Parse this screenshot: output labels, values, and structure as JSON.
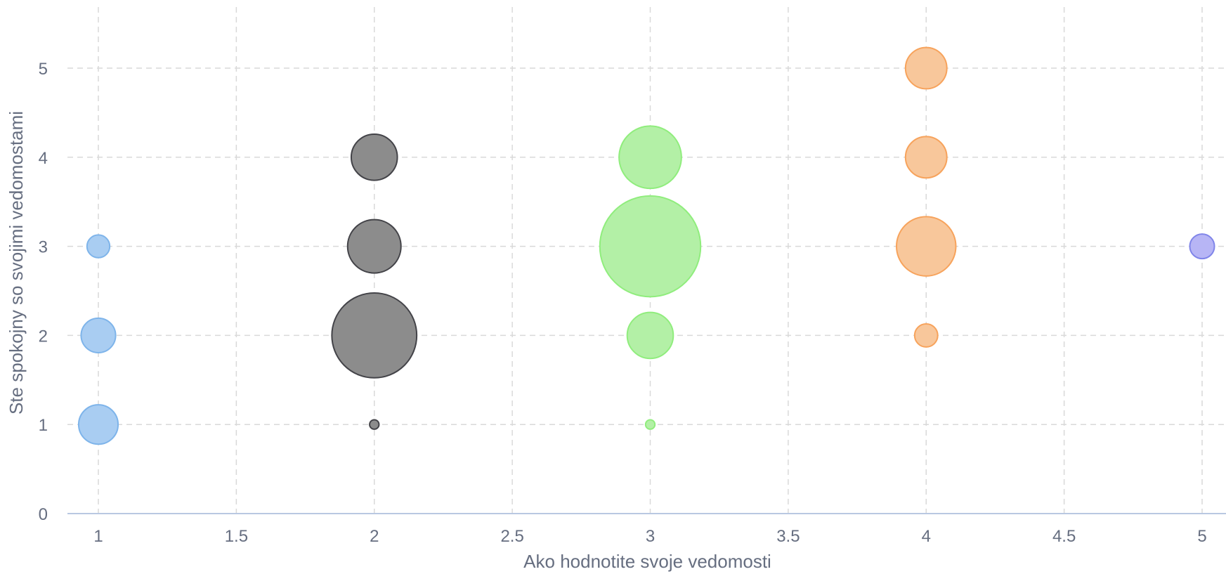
{
  "chart_data": {
    "type": "scatter",
    "subtype": "bubble",
    "title": "",
    "xlabel": "Ako hodnotite svoje vedomosti",
    "ylabel": "Ste spokojny so svojimi vedomostami",
    "xlim": [
      0.9,
      5.1
    ],
    "ylim": [
      0,
      5.6
    ],
    "x_ticks": [
      "1",
      "1.5",
      "2",
      "2.5",
      "3",
      "3.5",
      "4",
      "4.5",
      "5"
    ],
    "y_ticks": [
      "0",
      "1",
      "2",
      "3",
      "4",
      "5"
    ],
    "grid": true,
    "legend": "none",
    "series": [
      {
        "color": "#a9cdf2",
        "stroke": "#7eb4ea",
        "points": [
          {
            "x": 1,
            "y": 1,
            "size": 3
          },
          {
            "x": 1,
            "y": 2,
            "size": 2.3
          },
          {
            "x": 1,
            "y": 3,
            "size": 1
          }
        ]
      },
      {
        "color": "#8c8c8c",
        "stroke": "#434348",
        "points": [
          {
            "x": 2,
            "y": 1,
            "size": 0.17
          },
          {
            "x": 2,
            "y": 2,
            "size": 13.9
          },
          {
            "x": 2,
            "y": 3,
            "size": 5.5
          },
          {
            "x": 2,
            "y": 4,
            "size": 4.1
          }
        ]
      },
      {
        "color": "#b3f0a6",
        "stroke": "#90ed7d",
        "points": [
          {
            "x": 3,
            "y": 1,
            "size": 0.17
          },
          {
            "x": 3,
            "y": 2,
            "size": 4.1
          },
          {
            "x": 3,
            "y": 3,
            "size": 19.6
          },
          {
            "x": 3,
            "y": 4,
            "size": 7.5
          }
        ]
      },
      {
        "color": "#f8c79b",
        "stroke": "#f7a35c",
        "points": [
          {
            "x": 4,
            "y": 2,
            "size": 1.03
          },
          {
            "x": 4,
            "y": 3,
            "size": 6.8
          },
          {
            "x": 4,
            "y": 4,
            "size": 3.3
          },
          {
            "x": 4,
            "y": 5,
            "size": 3.3
          }
        ]
      },
      {
        "color": "#b7b5f5",
        "stroke": "#8085e9",
        "points": [
          {
            "x": 5,
            "y": 3,
            "size": 1.17
          }
        ]
      }
    ]
  }
}
